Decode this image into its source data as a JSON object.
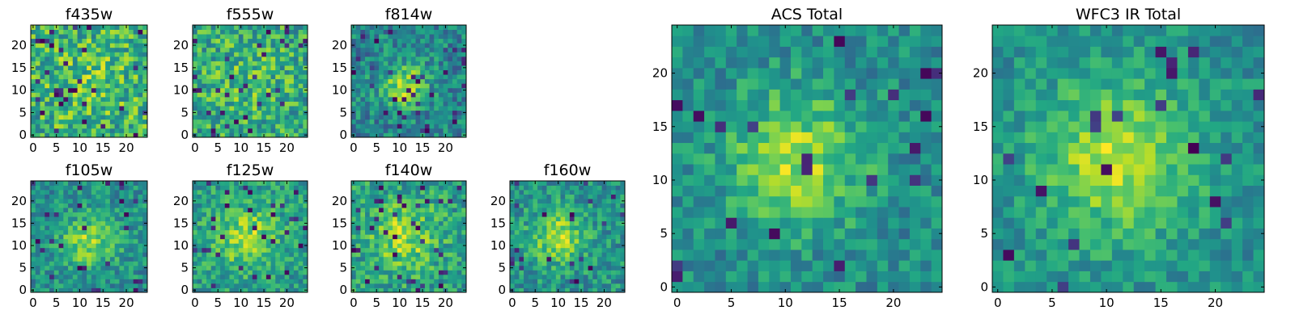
{
  "chart_data": {
    "type": "heatmap",
    "colormap": "viridis",
    "value_range": [
      0,
      1
    ],
    "panels": [
      {
        "id": "f435w",
        "title": "f435w",
        "grid_size": 25,
        "xticks": [
          0,
          5,
          10,
          15,
          20
        ],
        "yticks": [
          0,
          5,
          10,
          15,
          20
        ],
        "blob": {
          "center": [
            12,
            12
          ],
          "width": 8,
          "amplitude": 0.1
        },
        "base": 0.62,
        "noise": 0.26,
        "dark_spots": 0.05,
        "seed": 11
      },
      {
        "id": "f555w",
        "title": "f555w",
        "grid_size": 25,
        "xticks": [
          0,
          5,
          10,
          15,
          20
        ],
        "yticks": [
          0,
          5,
          10,
          15,
          20
        ],
        "blob": {
          "center": [
            12,
            12
          ],
          "width": 6,
          "amplitude": 0.1
        },
        "base": 0.6,
        "noise": 0.24,
        "dark_spots": 0.05,
        "seed": 23
      },
      {
        "id": "f814w",
        "title": "f814w",
        "grid_size": 25,
        "xticks": [
          0,
          5,
          10,
          15,
          20
        ],
        "yticks": [
          0,
          5,
          10,
          15,
          20
        ],
        "blob": {
          "center": [
            11,
            11
          ],
          "width": 3.5,
          "amplitude": 0.4
        },
        "base": 0.46,
        "noise": 0.2,
        "dark_spots": 0.05,
        "seed": 37
      },
      {
        "id": "f105w",
        "title": "f105w",
        "grid_size": 25,
        "xticks": [
          0,
          5,
          10,
          15,
          20
        ],
        "yticks": [
          0,
          5,
          10,
          15,
          20
        ],
        "blob": {
          "center": [
            12,
            11
          ],
          "width": 4,
          "amplitude": 0.35
        },
        "base": 0.5,
        "noise": 0.18,
        "dark_spots": 0.04,
        "seed": 41
      },
      {
        "id": "f125w",
        "title": "f125w",
        "grid_size": 25,
        "xticks": [
          0,
          5,
          10,
          15,
          20
        ],
        "yticks": [
          0,
          5,
          10,
          15,
          20
        ],
        "blob": {
          "center": [
            11,
            12
          ],
          "width": 5,
          "amplitude": 0.3
        },
        "base": 0.55,
        "noise": 0.18,
        "dark_spots": 0.04,
        "seed": 53
      },
      {
        "id": "f140w",
        "title": "f140w",
        "grid_size": 25,
        "xticks": [
          0,
          5,
          10,
          15,
          20
        ],
        "yticks": [
          0,
          5,
          10,
          15,
          20
        ],
        "blob": {
          "center": [
            11,
            12
          ],
          "width": 5,
          "amplitude": 0.3
        },
        "base": 0.56,
        "noise": 0.2,
        "dark_spots": 0.05,
        "seed": 67
      },
      {
        "id": "f160w",
        "title": "f160w",
        "grid_size": 25,
        "xticks": [
          0,
          5,
          10,
          15,
          20
        ],
        "yticks": [
          0,
          5,
          10,
          15,
          20
        ],
        "blob": {
          "center": [
            10,
            12
          ],
          "width": 4,
          "amplitude": 0.35
        },
        "base": 0.52,
        "noise": 0.18,
        "dark_spots": 0.05,
        "seed": 79
      },
      {
        "id": "acs-total",
        "title": "ACS Total",
        "grid_size": 25,
        "xticks": [
          0,
          5,
          10,
          15,
          20
        ],
        "yticks": [
          0,
          5,
          10,
          15,
          20
        ],
        "blob": {
          "center": [
            11,
            12
          ],
          "width": 4.5,
          "amplitude": 0.38
        },
        "base": 0.48,
        "noise": 0.16,
        "dark_spots": 0.03,
        "seed": 83
      },
      {
        "id": "wfc3-ir-total",
        "title": "WFC3 IR Total",
        "grid_size": 25,
        "xticks": [
          0,
          5,
          10,
          15,
          20
        ],
        "yticks": [
          0,
          5,
          10,
          15,
          20
        ],
        "blob": {
          "center": [
            11,
            12
          ],
          "width": 5,
          "amplitude": 0.4
        },
        "base": 0.5,
        "noise": 0.14,
        "dark_spots": 0.03,
        "seed": 97
      }
    ]
  }
}
